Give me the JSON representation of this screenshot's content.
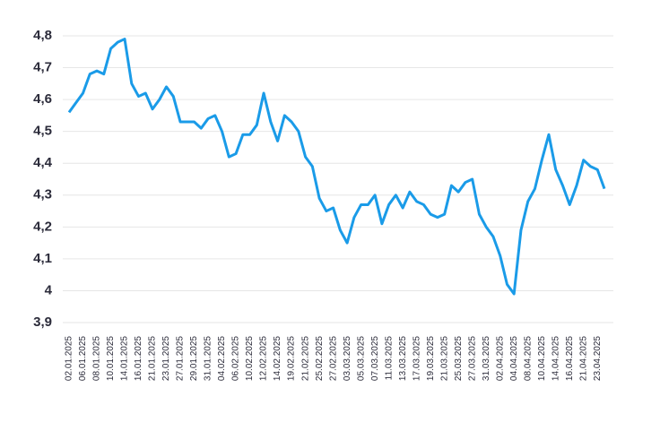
{
  "chart_data": {
    "type": "line",
    "categories": [
      "02.01.2025",
      null,
      "06.01.2025",
      null,
      "08.01.2025",
      null,
      "10.01.2025",
      null,
      "14.01.2025",
      null,
      "16.01.2025",
      null,
      "21.01.2025",
      null,
      "23.01.2025",
      null,
      "27.01.2025",
      null,
      "29.01.2025",
      null,
      "31.01.2025",
      null,
      "04.02.2025",
      null,
      "06.02.2025",
      null,
      "10.02.2025",
      null,
      "12.02.2025",
      null,
      "14.02.2025",
      null,
      "19.02.2025",
      null,
      "21.02.2025",
      null,
      "25.02.2025",
      null,
      "27.02.2025",
      null,
      "03.03.2025",
      null,
      "05.03.2025",
      null,
      "07.03.2025",
      null,
      "11.03.2025",
      null,
      "13.03.2025",
      null,
      "17.03.2025",
      null,
      "19.03.2025",
      null,
      "21.03.2025",
      null,
      "25.03.2025",
      null,
      "27.03.2025",
      null,
      "31.03.2025",
      null,
      "02.04.2025",
      null,
      "04.04.2025",
      null,
      "08.04.2025",
      null,
      "10.04.2025",
      null,
      "14.04.2025",
      null,
      "16.04.2025",
      null,
      "21.04.2025",
      null,
      "23.04.2025",
      null
    ],
    "values": [
      4.56,
      4.59,
      4.62,
      4.68,
      4.69,
      4.68,
      4.76,
      4.78,
      4.79,
      4.65,
      4.61,
      4.62,
      4.57,
      4.6,
      4.64,
      4.61,
      4.53,
      4.53,
      4.53,
      4.51,
      4.54,
      4.55,
      4.5,
      4.42,
      4.43,
      4.49,
      4.49,
      4.52,
      4.62,
      4.53,
      4.47,
      4.55,
      4.53,
      4.5,
      4.42,
      4.39,
      4.29,
      4.25,
      4.26,
      4.19,
      4.15,
      4.23,
      4.27,
      4.27,
      4.3,
      4.21,
      4.27,
      4.3,
      4.26,
      4.31,
      4.28,
      4.27,
      4.24,
      4.23,
      4.24,
      4.33,
      4.31,
      4.34,
      4.35,
      4.24,
      4.2,
      4.17,
      4.11,
      4.02,
      3.99,
      4.19,
      4.28,
      4.32,
      4.41,
      4.49,
      4.38,
      4.33,
      4.27,
      4.33,
      4.41,
      4.39,
      4.38,
      4.32
    ],
    "color": "#1a9be8",
    "ylim": [
      3.9,
      4.8
    ],
    "yticks": [
      {
        "value": 3.9,
        "label": "3,9"
      },
      4,
      {
        "value": 4.1,
        "label": "4,1"
      },
      {
        "value": 4.2,
        "label": "4,2"
      },
      {
        "value": 4.3,
        "label": "4,3"
      },
      {
        "value": 4.4,
        "label": "4,4"
      },
      {
        "value": 4.5,
        "label": "4,5"
      },
      {
        "value": 4.6,
        "label": "4,6"
      },
      {
        "value": 4.7,
        "label": "4,7"
      },
      {
        "value": 4.8,
        "label": "4,8"
      }
    ],
    "grid": true
  }
}
